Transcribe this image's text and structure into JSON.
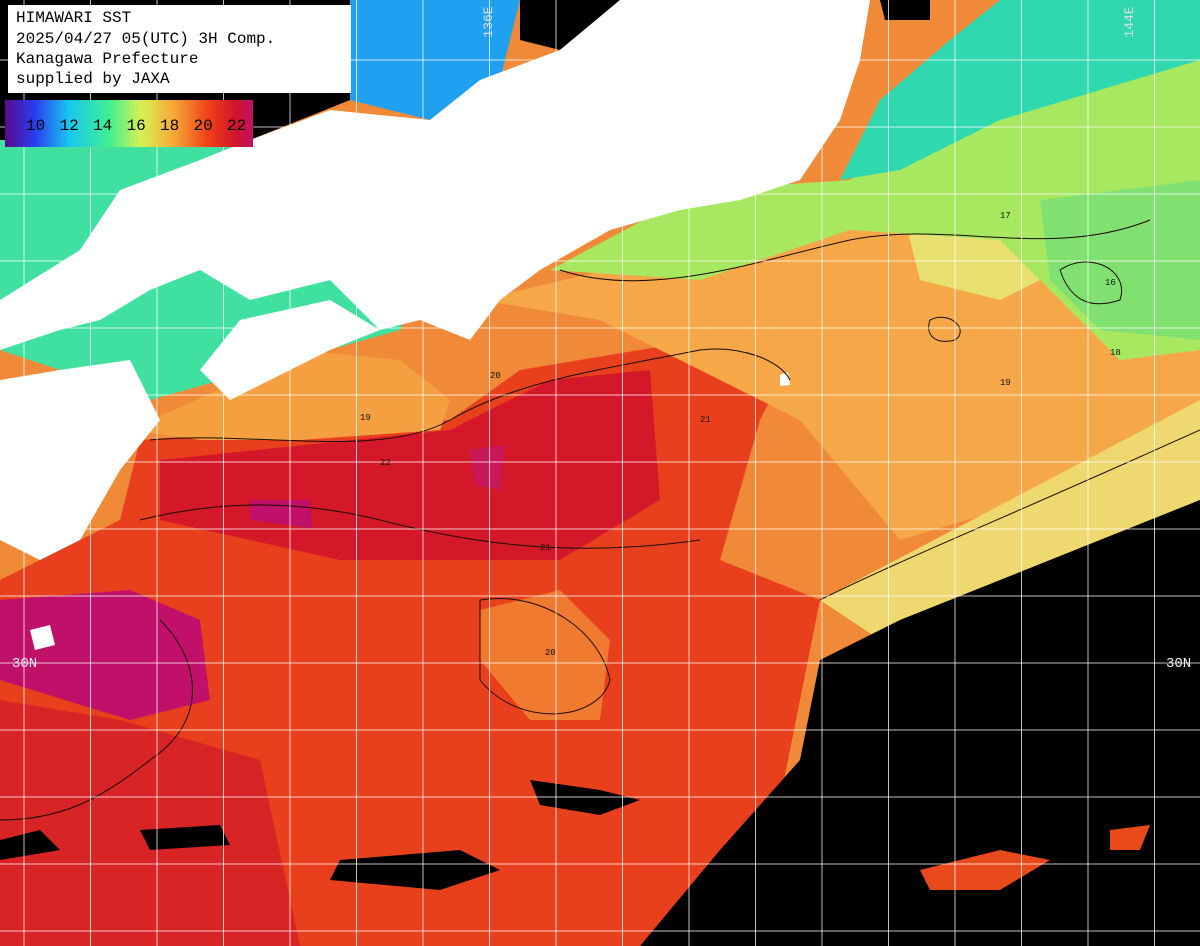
{
  "header": {
    "lines": [
      "HIMAWARI SST",
      "2025/04/27 05(UTC) 3H Comp.",
      "Kanagawa Prefecture",
      "supplied by JAXA"
    ]
  },
  "colorbar": {
    "labels": [
      "10",
      "12",
      "14",
      "16",
      "18",
      "20",
      "22"
    ]
  },
  "grid_labels": {
    "lon": [
      "136E",
      "144E"
    ],
    "lat": [
      "30N",
      "30N"
    ]
  },
  "contour_labels": [
    "20",
    "19",
    "21",
    "22",
    "20",
    "18",
    "17",
    "16",
    "19",
    "21"
  ]
}
